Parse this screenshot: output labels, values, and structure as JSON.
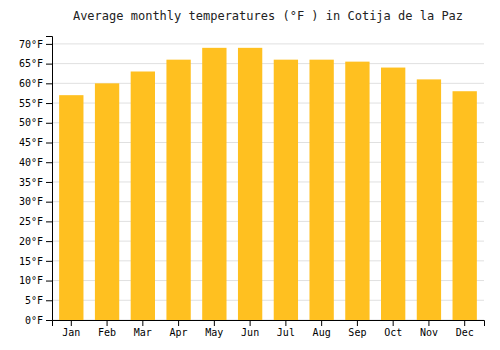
{
  "chart_data": {
    "type": "bar",
    "title": "Average monthly temperatures (°F ) in Cotija de la Paz",
    "categories": [
      "Jan",
      "Feb",
      "Mar",
      "Apr",
      "May",
      "Jun",
      "Jul",
      "Aug",
      "Sep",
      "Oct",
      "Nov",
      "Dec"
    ],
    "values": [
      57,
      60,
      63,
      66,
      69,
      69,
      66,
      66,
      65.5,
      64,
      61,
      58
    ],
    "color": "#FFC020",
    "ylim": [
      0,
      72
    ],
    "yticks": [
      {
        "value": 0,
        "label": "0°F"
      },
      {
        "value": 5,
        "label": "5°F"
      },
      {
        "value": 10,
        "label": "10°F"
      },
      {
        "value": 15,
        "label": "15°F"
      },
      {
        "value": 20,
        "label": "20°F"
      },
      {
        "value": 25,
        "label": "25°F"
      },
      {
        "value": 30,
        "label": "30°F"
      },
      {
        "value": 35,
        "label": "35°F"
      },
      {
        "value": 40,
        "label": "40°F"
      },
      {
        "value": 45,
        "label": "45°F"
      },
      {
        "value": 50,
        "label": "50°F"
      },
      {
        "value": 55,
        "label": "55°F"
      },
      {
        "value": 60,
        "label": "60°F"
      },
      {
        "value": 65,
        "label": "65°F"
      },
      {
        "value": 70,
        "label": "70°F"
      }
    ],
    "grid": true
  }
}
